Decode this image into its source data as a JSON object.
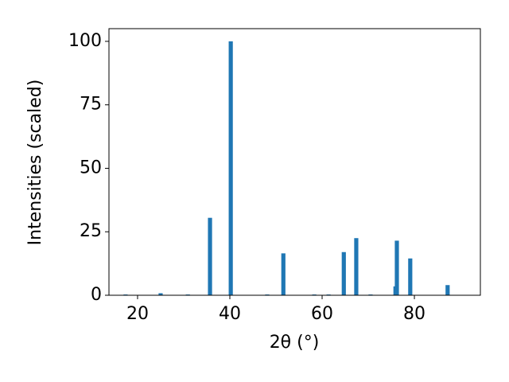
{
  "chart_data": {
    "type": "bar",
    "xlabel": "2θ (°)",
    "ylabel": "Intensities (scaled)",
    "color": "#1f77b4",
    "x": [
      17.4,
      25.0,
      30.9,
      35.7,
      40.2,
      48.1,
      51.6,
      58.3,
      61.4,
      64.7,
      67.4,
      70.5,
      75.9,
      76.2,
      79.1,
      87.2
    ],
    "values": [
      0.3,
      0.8,
      0.3,
      30.5,
      100,
      0.3,
      16.5,
      0.3,
      0.3,
      17,
      22.5,
      0.3,
      3.5,
      21.5,
      14.5,
      4
    ],
    "xlim": [
      13.8,
      94.3
    ],
    "ylim": [
      0,
      105
    ],
    "xticks": [
      20,
      40,
      60,
      80
    ],
    "yticks": [
      0,
      25,
      50,
      75,
      100
    ]
  }
}
